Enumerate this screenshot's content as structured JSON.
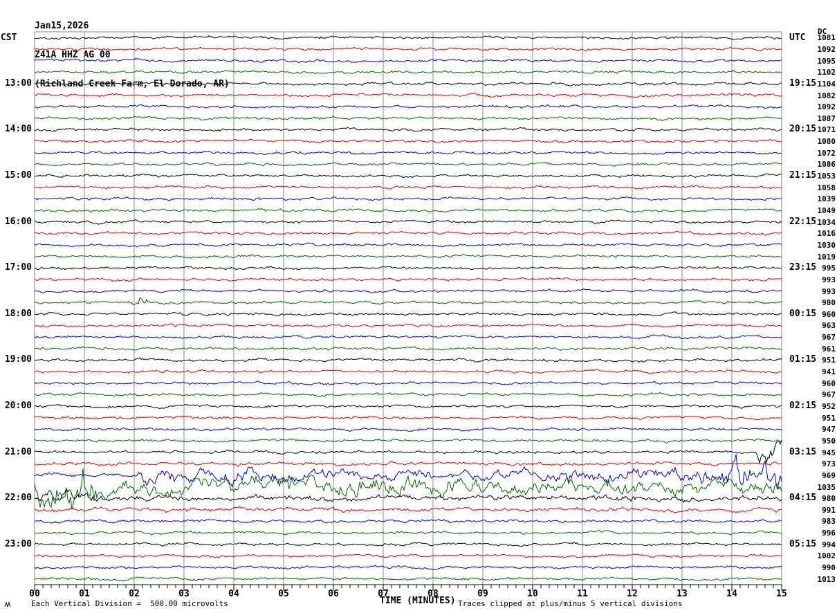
{
  "header": {
    "date": "Jan15,2026",
    "station": "Z41A HHZ AG 00",
    "location": "(Richland Creek Farm, El Dorado, AR)"
  },
  "axes": {
    "left_title": "CST",
    "right_title": "UTC",
    "dc_header": "DC",
    "x_title": "TIME (MINUTES)"
  },
  "footer": {
    "scale_note": "Each Vertical Division =  500.00 microvolts",
    "clip_note": "Traces clipped at plus/minus 5 vertical divisions"
  },
  "colors": {
    "black": "#000000",
    "red": "#dd0000",
    "blue": "#0000cc",
    "green": "#006600",
    "grid": "#8a8a8a",
    "axis": "#000000"
  },
  "chart_data": {
    "type": "line",
    "subtype": "helicorder-seismogram",
    "title": "Z41A HHZ AG 00 (Richland Creek Farm, El Dorado, AR) Jan15,2026",
    "xlabel": "TIME (MINUTES)",
    "x_range_minutes": [
      0,
      15
    ],
    "x_ticks": [
      "00",
      "01",
      "02",
      "03",
      "04",
      "05",
      "06",
      "07",
      "08",
      "09",
      "10",
      "11",
      "12",
      "13",
      "14",
      "15"
    ],
    "minor_ticks_per_minute": 6,
    "row_duration_minutes": 15,
    "vertical_division_microvolts": 500.0,
    "clip_divisions": 5,
    "trace_color_cycle": [
      "black",
      "red",
      "blue",
      "green"
    ],
    "rows": [
      {
        "cst": "",
        "utc": "",
        "dc": 1081,
        "color": "black"
      },
      {
        "cst": "",
        "utc": "",
        "dc": 1092,
        "color": "red"
      },
      {
        "cst": "",
        "utc": "",
        "dc": 1095,
        "color": "blue"
      },
      {
        "cst": "",
        "utc": "",
        "dc": 1102,
        "color": "green"
      },
      {
        "cst": "13:00",
        "utc": "19:15",
        "dc": 1104,
        "color": "black"
      },
      {
        "cst": "",
        "utc": "",
        "dc": 1082,
        "color": "red"
      },
      {
        "cst": "",
        "utc": "",
        "dc": 1092,
        "color": "blue"
      },
      {
        "cst": "",
        "utc": "",
        "dc": 1087,
        "color": "green"
      },
      {
        "cst": "14:00",
        "utc": "20:15",
        "dc": 1071,
        "color": "black"
      },
      {
        "cst": "",
        "utc": "",
        "dc": 1080,
        "color": "red"
      },
      {
        "cst": "",
        "utc": "",
        "dc": 1072,
        "color": "blue"
      },
      {
        "cst": "",
        "utc": "",
        "dc": 1086,
        "color": "green"
      },
      {
        "cst": "15:00",
        "utc": "21:15",
        "dc": 1053,
        "color": "black"
      },
      {
        "cst": "",
        "utc": "",
        "dc": 1058,
        "color": "red"
      },
      {
        "cst": "",
        "utc": "",
        "dc": 1039,
        "color": "blue"
      },
      {
        "cst": "",
        "utc": "",
        "dc": 1049,
        "color": "green"
      },
      {
        "cst": "16:00",
        "utc": "22:15",
        "dc": 1034,
        "color": "black"
      },
      {
        "cst": "",
        "utc": "",
        "dc": 1016,
        "color": "red"
      },
      {
        "cst": "",
        "utc": "",
        "dc": 1030,
        "color": "blue"
      },
      {
        "cst": "",
        "utc": "",
        "dc": 1019,
        "color": "green"
      },
      {
        "cst": "17:00",
        "utc": "23:15",
        "dc": 995,
        "color": "black"
      },
      {
        "cst": "",
        "utc": "",
        "dc": 993,
        "color": "red"
      },
      {
        "cst": "",
        "utc": "",
        "dc": 993,
        "color": "blue"
      },
      {
        "cst": "",
        "utc": "",
        "dc": 980,
        "color": "green",
        "bursts": [
          {
            "t0": 1.95,
            "t1": 2.35,
            "a": 8
          }
        ]
      },
      {
        "cst": "18:00",
        "utc": "00:15",
        "dc": 960,
        "color": "black"
      },
      {
        "cst": "",
        "utc": "",
        "dc": 963,
        "color": "red"
      },
      {
        "cst": "",
        "utc": "",
        "dc": 967,
        "color": "blue"
      },
      {
        "cst": "",
        "utc": "",
        "dc": 961,
        "color": "green"
      },
      {
        "cst": "19:00",
        "utc": "01:15",
        "dc": 951,
        "color": "black"
      },
      {
        "cst": "",
        "utc": "",
        "dc": 941,
        "color": "red"
      },
      {
        "cst": "",
        "utc": "",
        "dc": 960,
        "color": "blue"
      },
      {
        "cst": "",
        "utc": "",
        "dc": 967,
        "color": "green"
      },
      {
        "cst": "20:00",
        "utc": "02:15",
        "dc": 952,
        "color": "black"
      },
      {
        "cst": "",
        "utc": "",
        "dc": 951,
        "color": "red"
      },
      {
        "cst": "",
        "utc": "",
        "dc": 947,
        "color": "blue"
      },
      {
        "cst": "",
        "utc": "",
        "dc": 950,
        "color": "green"
      },
      {
        "cst": "21:00",
        "utc": "03:15",
        "dc": 945,
        "color": "black",
        "bursts": [
          {
            "t0": 14.5,
            "t1": 15,
            "a": 22
          }
        ]
      },
      {
        "cst": "",
        "utc": "",
        "dc": 973,
        "color": "red",
        "amp": 1.25
      },
      {
        "cst": "",
        "utc": "",
        "dc": 969,
        "color": "blue",
        "amp": 1.2,
        "bursts": [
          {
            "t0": 2.05,
            "t1": 6,
            "a": 13
          },
          {
            "t0": 6,
            "t1": 10.5,
            "a": 9
          },
          {
            "t0": 10.5,
            "t1": 13.8,
            "a": 13
          },
          {
            "t0": 13.8,
            "t1": 15,
            "a": 30
          }
        ]
      },
      {
        "cst": "",
        "utc": "",
        "dc": 1035,
        "color": "green",
        "bursts": [
          {
            "t0": 0,
            "t1": 1.25,
            "a": 40
          },
          {
            "t0": 1.25,
            "t1": 9,
            "a": 16
          },
          {
            "t0": 9,
            "t1": 15,
            "a": 13
          }
        ]
      },
      {
        "cst": "22:00",
        "utc": "04:15",
        "dc": 980,
        "color": "black",
        "amp": 2,
        "bursts": [
          {
            "t0": 0,
            "t1": 1.2,
            "a": 12
          }
        ]
      },
      {
        "cst": "",
        "utc": "",
        "dc": 991,
        "color": "red",
        "amp": 1.5
      },
      {
        "cst": "",
        "utc": "",
        "dc": 983,
        "color": "blue",
        "amp": 1.1
      },
      {
        "cst": "",
        "utc": "",
        "dc": 996,
        "color": "green"
      },
      {
        "cst": "23:00",
        "utc": "05:15",
        "dc": 994,
        "color": "black"
      },
      {
        "cst": "",
        "utc": "",
        "dc": 1002,
        "color": "red"
      },
      {
        "cst": "",
        "utc": "",
        "dc": 990,
        "color": "blue"
      },
      {
        "cst": "",
        "utc": "",
        "dc": 1013,
        "color": "green"
      }
    ],
    "events": [
      {
        "approx_cst": "17:45",
        "approx_minute": 2.1,
        "description": "small burst on green 17:45 trace"
      },
      {
        "approx_cst": "21:30-22:15",
        "description": "large event: blue 21:30 row active from minute 2 to end with clipped spikes, green 21:45 row saturated large-amplitude for full row, elevated noise on 22:00 rows"
      }
    ]
  }
}
